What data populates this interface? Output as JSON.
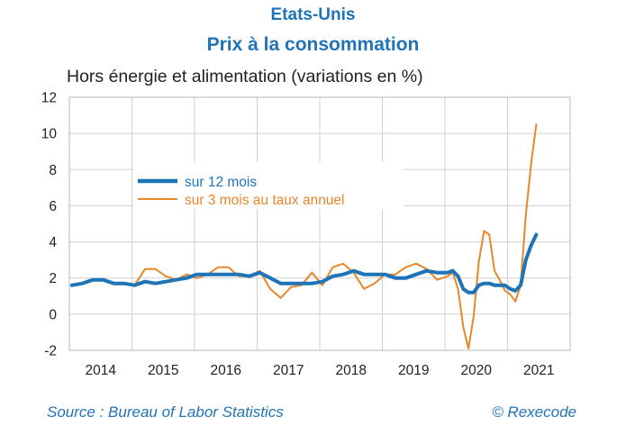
{
  "header": {
    "title": "Etats-Unis",
    "subtitle": "Prix à la consommation"
  },
  "footer": {
    "source": "Source : Bureau of Labor Statistics",
    "copyright": "© Rexecode"
  },
  "colors": {
    "title": "#1f74b8",
    "series_12m": "#1f74b8",
    "series_3m": "#e8862a",
    "grid": "#d0d0d0",
    "axis": "#b8b8b8"
  },
  "chart_data": {
    "type": "line",
    "title": "Hors énergie et alimentation (variations en %)",
    "ylim": [
      -2,
      12
    ],
    "y_ticks": [
      -2,
      0,
      2,
      4,
      6,
      8,
      10,
      12
    ],
    "x_ticks": [
      "2014",
      "2015",
      "2016",
      "2017",
      "2018",
      "2019",
      "2020",
      "2021"
    ],
    "grid": true,
    "legend_position": "upper-left",
    "series": [
      {
        "name": "sur 12 mois",
        "color": "#1f74b8",
        "points": [
          [
            "2014-01",
            1.6
          ],
          [
            "2014-03",
            1.7
          ],
          [
            "2014-05",
            1.9
          ],
          [
            "2014-07",
            1.9
          ],
          [
            "2014-09",
            1.7
          ],
          [
            "2014-11",
            1.7
          ],
          [
            "2015-01",
            1.6
          ],
          [
            "2015-03",
            1.8
          ],
          [
            "2015-05",
            1.7
          ],
          [
            "2015-07",
            1.8
          ],
          [
            "2015-09",
            1.9
          ],
          [
            "2015-11",
            2.0
          ],
          [
            "2016-01",
            2.2
          ],
          [
            "2016-03",
            2.2
          ],
          [
            "2016-05",
            2.2
          ],
          [
            "2016-07",
            2.2
          ],
          [
            "2016-09",
            2.2
          ],
          [
            "2016-11",
            2.1
          ],
          [
            "2017-01",
            2.3
          ],
          [
            "2017-03",
            2.0
          ],
          [
            "2017-05",
            1.7
          ],
          [
            "2017-07",
            1.7
          ],
          [
            "2017-09",
            1.7
          ],
          [
            "2017-11",
            1.7
          ],
          [
            "2018-01",
            1.8
          ],
          [
            "2018-03",
            2.1
          ],
          [
            "2018-05",
            2.2
          ],
          [
            "2018-07",
            2.4
          ],
          [
            "2018-09",
            2.2
          ],
          [
            "2018-11",
            2.2
          ],
          [
            "2019-01",
            2.2
          ],
          [
            "2019-03",
            2.0
          ],
          [
            "2019-05",
            2.0
          ],
          [
            "2019-07",
            2.2
          ],
          [
            "2019-09",
            2.4
          ],
          [
            "2019-11",
            2.3
          ],
          [
            "2020-01",
            2.3
          ],
          [
            "2020-02",
            2.4
          ],
          [
            "2020-03",
            2.1
          ],
          [
            "2020-04",
            1.4
          ],
          [
            "2020-05",
            1.2
          ],
          [
            "2020-06",
            1.2
          ],
          [
            "2020-07",
            1.6
          ],
          [
            "2020-08",
            1.7
          ],
          [
            "2020-09",
            1.7
          ],
          [
            "2020-10",
            1.6
          ],
          [
            "2020-11",
            1.6
          ],
          [
            "2020-12",
            1.6
          ],
          [
            "2021-01",
            1.4
          ],
          [
            "2021-02",
            1.3
          ],
          [
            "2021-03",
            1.6
          ],
          [
            "2021-04",
            3.0
          ],
          [
            "2021-05",
            3.8
          ],
          [
            "2021-06",
            4.4
          ]
        ]
      },
      {
        "name": "sur 3 mois au taux annuel",
        "color": "#e8862a",
        "points": [
          [
            "2015-01",
            1.6
          ],
          [
            "2015-03",
            2.5
          ],
          [
            "2015-05",
            2.5
          ],
          [
            "2015-07",
            2.1
          ],
          [
            "2015-09",
            1.9
          ],
          [
            "2015-11",
            2.2
          ],
          [
            "2016-01",
            2.0
          ],
          [
            "2016-03",
            2.2
          ],
          [
            "2016-05",
            2.6
          ],
          [
            "2016-07",
            2.6
          ],
          [
            "2016-09",
            2.1
          ],
          [
            "2016-11",
            2.1
          ],
          [
            "2017-01",
            2.4
          ],
          [
            "2017-03",
            1.4
          ],
          [
            "2017-05",
            0.9
          ],
          [
            "2017-07",
            1.5
          ],
          [
            "2017-09",
            1.6
          ],
          [
            "2017-11",
            2.3
          ],
          [
            "2018-01",
            1.6
          ],
          [
            "2018-03",
            2.6
          ],
          [
            "2018-05",
            2.8
          ],
          [
            "2018-07",
            2.3
          ],
          [
            "2018-09",
            1.4
          ],
          [
            "2018-11",
            1.7
          ],
          [
            "2019-01",
            2.2
          ],
          [
            "2019-03",
            2.2
          ],
          [
            "2019-05",
            2.6
          ],
          [
            "2019-07",
            2.8
          ],
          [
            "2019-09",
            2.5
          ],
          [
            "2019-11",
            1.9
          ],
          [
            "2020-01",
            2.1
          ],
          [
            "2020-02",
            2.3
          ],
          [
            "2020-03",
            1.4
          ],
          [
            "2020-04",
            -0.7
          ],
          [
            "2020-05",
            -1.9
          ],
          [
            "2020-06",
            -0.1
          ],
          [
            "2020-07",
            2.9
          ],
          [
            "2020-08",
            4.6
          ],
          [
            "2020-09",
            4.4
          ],
          [
            "2020-10",
            2.4
          ],
          [
            "2020-11",
            1.9
          ],
          [
            "2020-12",
            1.3
          ],
          [
            "2021-01",
            1.1
          ],
          [
            "2021-02",
            0.7
          ],
          [
            "2021-03",
            1.6
          ],
          [
            "2021-04",
            5.5
          ],
          [
            "2021-05",
            8.3
          ],
          [
            "2021-06",
            10.5
          ]
        ]
      }
    ]
  }
}
